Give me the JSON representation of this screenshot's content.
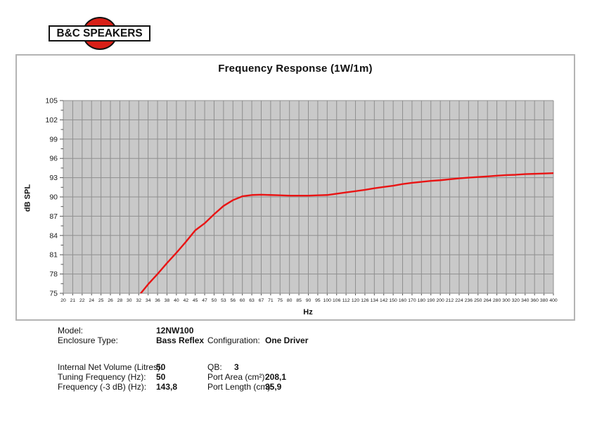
{
  "logo": {
    "text": "B&C SPEAKERS",
    "red": "#d81f17"
  },
  "chart_data": {
    "type": "line",
    "title": "Frequency Response (1W/1m)",
    "xlabel": "Hz",
    "ylabel": "dB SPL",
    "ylim": [
      75,
      105
    ],
    "ytick_step": 3,
    "ytick_minor_step": 1.5,
    "grid": true,
    "legend": false,
    "plot_bg": "#c9c9c9",
    "grid_color": "#8f8f8f",
    "categories": [
      20,
      21,
      22,
      24,
      25,
      26,
      28,
      30,
      32,
      34,
      36,
      38,
      40,
      42,
      45,
      47,
      50,
      53,
      56,
      60,
      63,
      67,
      71,
      75,
      80,
      85,
      90,
      95,
      100,
      106,
      112,
      120,
      126,
      134,
      142,
      150,
      160,
      170,
      180,
      190,
      200,
      212,
      224,
      236,
      250,
      264,
      280,
      300,
      320,
      340,
      360,
      380,
      400
    ],
    "series": [
      {
        "name": "SPL (1W/1m)",
        "color": "#e91414",
        "values": [
          null,
          null,
          null,
          null,
          null,
          null,
          null,
          null,
          74.6,
          76.4,
          78.0,
          79.7,
          81.3,
          83.0,
          84.8,
          85.9,
          87.3,
          88.6,
          89.5,
          90.1,
          90.3,
          90.35,
          90.3,
          90.25,
          90.2,
          90.2,
          90.2,
          90.25,
          90.3,
          90.5,
          90.7,
          90.9,
          91.1,
          91.35,
          91.55,
          91.75,
          92.0,
          92.2,
          92.35,
          92.5,
          92.6,
          92.75,
          92.9,
          93.0,
          93.1,
          93.2,
          93.3,
          93.4,
          93.45,
          93.55,
          93.6,
          93.65,
          93.7
        ]
      }
    ]
  },
  "specs": {
    "group1": [
      {
        "label": "Model:",
        "value": "12NW100",
        "label2": "",
        "value2": ""
      },
      {
        "label": "Enclosure Type:",
        "value": "Bass Reflex",
        "label2": "Configuration:",
        "value2": "One Driver"
      }
    ],
    "group2": [
      {
        "label": "Internal  Net Volume (Litres):",
        "value": "50",
        "label2": "QB:",
        "value2": "3"
      },
      {
        "label": "Tuning Frequency (Hz):",
        "value": "50",
        "label2": "Port Area (cm²):",
        "value2": "208,1"
      },
      {
        "label": "Frequency (-3 dB) (Hz):",
        "value": "143,8",
        "label2": "Port Length (cm):",
        "value2": "35,9"
      }
    ]
  }
}
